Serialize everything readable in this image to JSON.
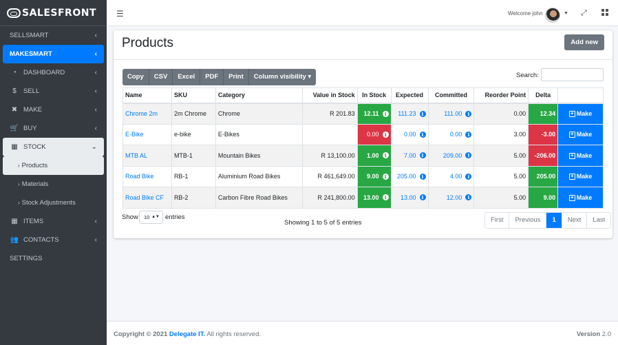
{
  "brand": {
    "name": "SALESFRONT"
  },
  "sidebar": {
    "items": [
      {
        "label": "SELLSMART",
        "icon": "",
        "type": "header"
      },
      {
        "label": "MAKESMART",
        "icon": "",
        "type": "active"
      },
      {
        "label": "DASHBOARD",
        "icon": "dashboard-icon"
      },
      {
        "label": "SELL",
        "icon": "dollar-icon"
      },
      {
        "label": "MAKE",
        "icon": "tools-icon"
      },
      {
        "label": "BUY",
        "icon": "cart-icon"
      },
      {
        "label": "STOCK",
        "icon": "boxes-icon",
        "type": "open"
      },
      {
        "label": "Products",
        "type": "sub-current"
      },
      {
        "label": "Materials",
        "type": "sub"
      },
      {
        "label": "Stock Adjustments",
        "type": "sub"
      },
      {
        "label": "ITEMS",
        "icon": "boxes-icon"
      },
      {
        "label": "CONTACTS",
        "icon": "users-icon"
      },
      {
        "label": "SETTINGS",
        "icon": "",
        "type": "header"
      }
    ]
  },
  "topbar": {
    "welcome": "Welcome john"
  },
  "page": {
    "title": "Products",
    "add_label": "Add new",
    "search_label": "Search:",
    "search_value": ""
  },
  "toolbar": {
    "buttons": [
      "Copy",
      "CSV",
      "Excel",
      "PDF",
      "Print",
      "Column visibility"
    ]
  },
  "table": {
    "columns": [
      "Name",
      "SKU",
      "Category",
      "Value in Stock",
      "In Stock",
      "Expected",
      "Committed",
      "Reorder Point",
      "Delta",
      ""
    ],
    "rows": [
      {
        "name": "Chrome 2m",
        "sku": "2m Chrome",
        "category": "Chrome",
        "value": "R 201.83",
        "in_stock": "12.11",
        "in_stock_status": "green",
        "expected": "111.23",
        "committed": "111.00",
        "reorder": "0.00",
        "delta": "12.34",
        "delta_status": "green",
        "action": "Make"
      },
      {
        "name": "E-Bike",
        "sku": "e-bike",
        "category": "E-Bikes",
        "value": "",
        "in_stock": "0.00",
        "in_stock_status": "red",
        "expected": "0.00",
        "committed": "0.00",
        "reorder": "3.00",
        "delta": "-3.00",
        "delta_status": "red",
        "action": "Make"
      },
      {
        "name": "MTB AL",
        "sku": "MTB-1",
        "category": "Mountain Bikes",
        "value": "R 13,100.00",
        "in_stock": "1.00",
        "in_stock_status": "green",
        "expected": "7.00",
        "committed": "209.00",
        "reorder": "5.00",
        "delta": "-206.00",
        "delta_status": "red",
        "action": "Make"
      },
      {
        "name": "Road Bike",
        "sku": "RB-1",
        "category": "Aluminium Road Bikes",
        "value": "R 461,649.00",
        "in_stock": "9.00",
        "in_stock_status": "green",
        "expected": "205.00",
        "committed": "4.00",
        "reorder": "5.00",
        "delta": "205.00",
        "delta_status": "green",
        "action": "Make"
      },
      {
        "name": "Road Bike CF",
        "sku": "RB-2",
        "category": "Carbon Fibre Road Bikes",
        "value": "R 241,800.00",
        "in_stock": "13.00",
        "in_stock_status": "green",
        "expected": "13.00",
        "committed": "12.00",
        "reorder": "5.00",
        "delta": "9.00",
        "delta_status": "green",
        "action": "Make"
      }
    ]
  },
  "length": {
    "show": "Show",
    "value": "10",
    "entries": "entries"
  },
  "info": "Showing 1 to 5 of 5 entries",
  "pagination": {
    "first": "First",
    "previous": "Previous",
    "current": "1",
    "next": "Next",
    "last": "Last"
  },
  "footer": {
    "copyright": "Copyright © 2021",
    "company": "Delegate IT.",
    "rights": "All rights reserved.",
    "version_label": "Version",
    "version": "2.0"
  },
  "colors": {
    "primary": "#007bff",
    "success": "#28a745",
    "danger": "#dc3545",
    "sidebar": "#343a40",
    "secondary": "#6c757d"
  }
}
